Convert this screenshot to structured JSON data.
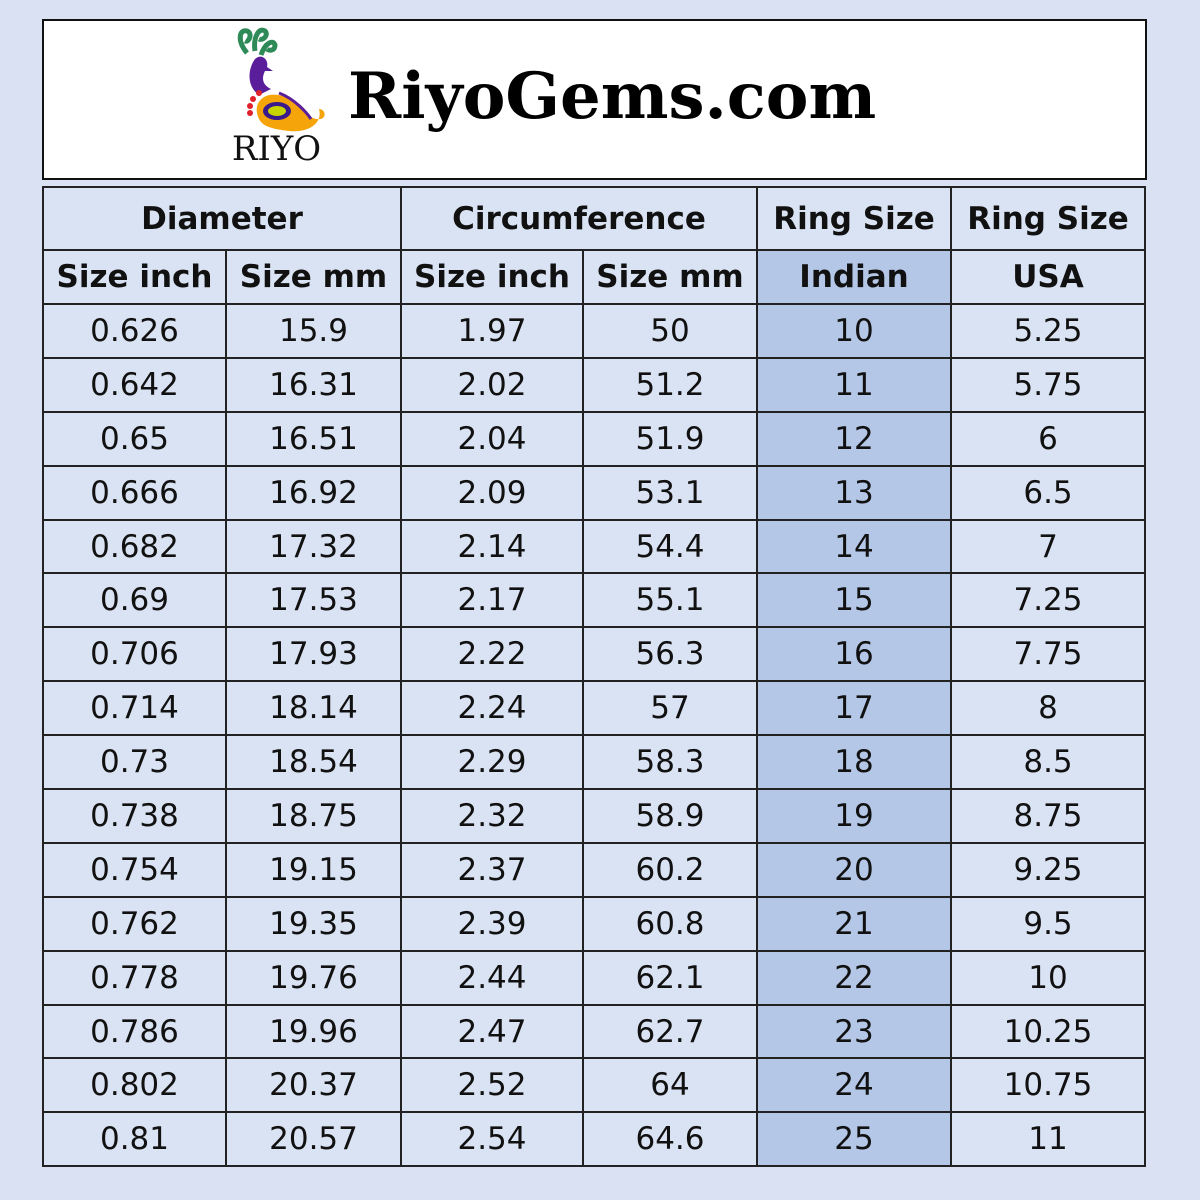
{
  "banner": {
    "logo_text": "RIYO",
    "title": "RiyoGems.com"
  },
  "colors": {
    "background": "#d9e1f2",
    "cell": "#dae3f3",
    "indian_highlight": "#b4c7e7"
  },
  "table": {
    "group_headers": [
      "Diameter",
      "Circumference",
      "Ring Size",
      "Ring Size"
    ],
    "sub_headers": [
      "Size inch",
      "Size mm",
      "Size inch",
      "Size mm",
      "Indian",
      "USA"
    ],
    "rows": [
      [
        "0.626",
        "15.9",
        "1.97",
        "50",
        "10",
        "5.25"
      ],
      [
        "0.642",
        "16.31",
        "2.02",
        "51.2",
        "11",
        "5.75"
      ],
      [
        "0.65",
        "16.51",
        "2.04",
        "51.9",
        "12",
        "6"
      ],
      [
        "0.666",
        "16.92",
        "2.09",
        "53.1",
        "13",
        "6.5"
      ],
      [
        "0.682",
        "17.32",
        "2.14",
        "54.4",
        "14",
        "7"
      ],
      [
        "0.69",
        "17.53",
        "2.17",
        "55.1",
        "15",
        "7.25"
      ],
      [
        "0.706",
        "17.93",
        "2.22",
        "56.3",
        "16",
        "7.75"
      ],
      [
        "0.714",
        "18.14",
        "2.24",
        "57",
        "17",
        "8"
      ],
      [
        "0.73",
        "18.54",
        "2.29",
        "58.3",
        "18",
        "8.5"
      ],
      [
        "0.738",
        "18.75",
        "2.32",
        "58.9",
        "19",
        "8.75"
      ],
      [
        "0.754",
        "19.15",
        "2.37",
        "60.2",
        "20",
        "9.25"
      ],
      [
        "0.762",
        "19.35",
        "2.39",
        "60.8",
        "21",
        "9.5"
      ],
      [
        "0.778",
        "19.76",
        "2.44",
        "62.1",
        "22",
        "10"
      ],
      [
        "0.786",
        "19.96",
        "2.47",
        "62.7",
        "23",
        "10.25"
      ],
      [
        "0.802",
        "20.37",
        "2.52",
        "64",
        "24",
        "10.75"
      ],
      [
        "0.81",
        "20.57",
        "2.54",
        "64.6",
        "25",
        "11"
      ]
    ]
  }
}
